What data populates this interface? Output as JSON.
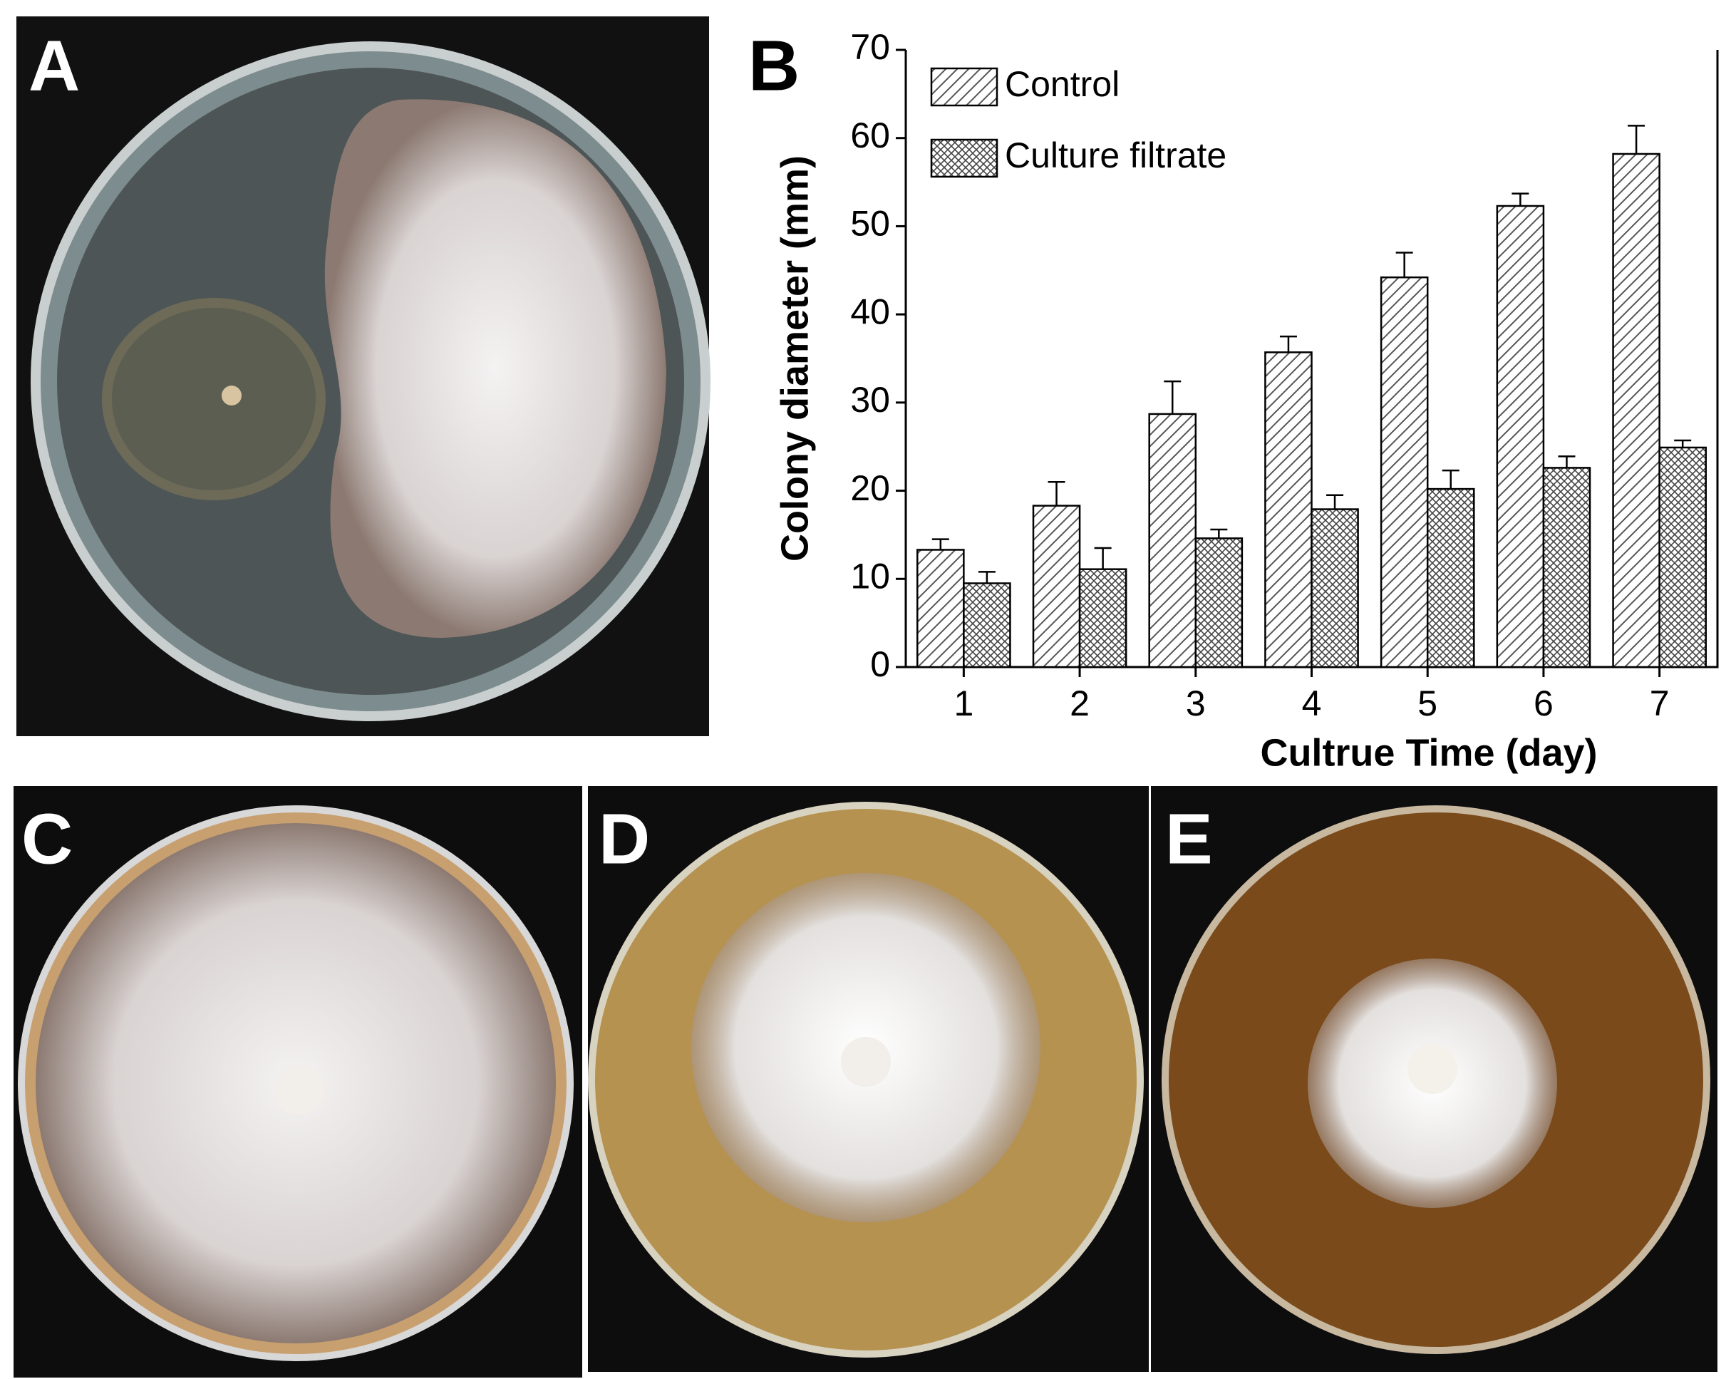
{
  "panel_labels": [
    "A",
    "B",
    "C",
    "D",
    "E"
  ],
  "chart_data": {
    "type": "bar",
    "x_label": "Cultrue Time (day)",
    "y_label": "Colony diameter (mm)",
    "categories": [
      "1",
      "2",
      "3",
      "4",
      "5",
      "6",
      "7"
    ],
    "series": [
      {
        "name": "Control",
        "color": "#000000",
        "pattern": "diagonal",
        "values": [
          13.3,
          18.3,
          28.7,
          35.7,
          44.2,
          52.3,
          58.2
        ],
        "errors": [
          1.2,
          2.7,
          3.7,
          1.8,
          2.8,
          1.4,
          3.2
        ]
      },
      {
        "name": "Culture filtrate",
        "color": "#000000",
        "pattern": "crosshatch",
        "values": [
          9.5,
          11.1,
          14.6,
          17.9,
          20.2,
          22.6,
          24.9
        ],
        "errors": [
          1.3,
          2.4,
          1.0,
          1.6,
          2.1,
          1.3,
          0.8
        ]
      }
    ],
    "ylim": [
      0,
      70
    ],
    "yticks": [
      0,
      10,
      20,
      30,
      40,
      50,
      60,
      70
    ],
    "legend": "upper-left",
    "grid": false
  }
}
